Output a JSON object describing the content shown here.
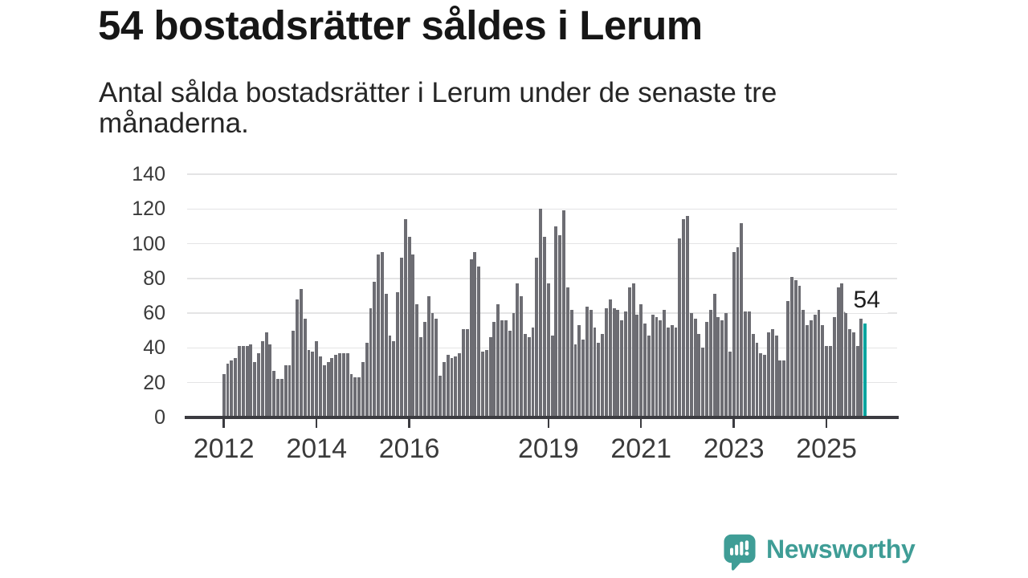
{
  "title": "54 bostadsrätter såldes i Lerum",
  "subtitle_lines": [
    "Antal sålda bostadsrätter i Lerum under de senaste tre",
    "månaderna."
  ],
  "logo": {
    "text": "Newsworthy"
  },
  "colors": {
    "bar": "#6d6d73",
    "highlight": "#00a49e",
    "axis": "#3b3b40",
    "grid": "#e4e4e5",
    "tick_text": "#3a3a3a",
    "logo_teal": "#3f9d96"
  },
  "chart_data": {
    "type": "bar",
    "title": "54 bostadsrätter såldes i Lerum",
    "subtitle": "Antal sålda bostadsrätter i Lerum under de senaste tre månaderna.",
    "frequency": "monthly",
    "start": "2012-01",
    "end": "2025-11",
    "ylim": [
      0,
      140
    ],
    "yticks": [
      0,
      20,
      40,
      60,
      80,
      100,
      120,
      140
    ],
    "grid": "horizontal",
    "xticks": [
      {
        "label": "2012",
        "month_index": 0
      },
      {
        "label": "2014",
        "month_index": 24
      },
      {
        "label": "2016",
        "month_index": 48
      },
      {
        "label": "2019",
        "month_index": 84
      },
      {
        "label": "2021",
        "month_index": 108
      },
      {
        "label": "2023",
        "month_index": 132
      },
      {
        "label": "2025",
        "month_index": 156
      }
    ],
    "values": [
      25,
      31,
      33,
      34,
      41,
      41,
      41,
      42,
      32,
      37,
      44,
      49,
      42,
      27,
      22,
      22,
      30,
      30,
      50,
      68,
      74,
      57,
      39,
      38,
      44,
      35,
      30,
      32,
      34,
      36,
      37,
      37,
      37,
      25,
      23,
      23,
      32,
      43,
      63,
      78,
      94,
      95,
      71,
      47,
      44,
      72,
      92,
      114,
      104,
      94,
      65,
      46,
      55,
      70,
      60,
      57,
      24,
      32,
      36,
      34,
      35,
      37,
      51,
      51,
      91,
      95,
      87,
      38,
      39,
      46,
      55,
      65,
      56,
      56,
      50,
      60,
      77,
      70,
      48,
      46,
      52,
      92,
      120,
      104,
      77,
      47,
      110,
      105,
      119,
      75,
      62,
      42,
      53,
      45,
      64,
      62,
      52,
      43,
      48,
      63,
      68,
      63,
      62,
      56,
      61,
      75,
      77,
      59,
      65,
      54,
      47,
      59,
      58,
      56,
      62,
      52,
      53,
      52,
      103,
      114,
      116,
      60,
      57,
      48,
      40,
      55,
      62,
      71,
      58,
      56,
      60,
      38,
      95,
      98,
      112,
      61,
      61,
      48,
      43,
      37,
      36,
      49,
      51,
      47,
      33,
      33,
      67,
      81,
      79,
      76,
      62,
      53,
      56,
      59,
      62,
      53,
      41,
      41,
      58,
      75,
      77,
      73,
      51,
      49,
      41,
      57,
      54
    ],
    "highlight_index": 166,
    "highlight_value_label": "54"
  }
}
